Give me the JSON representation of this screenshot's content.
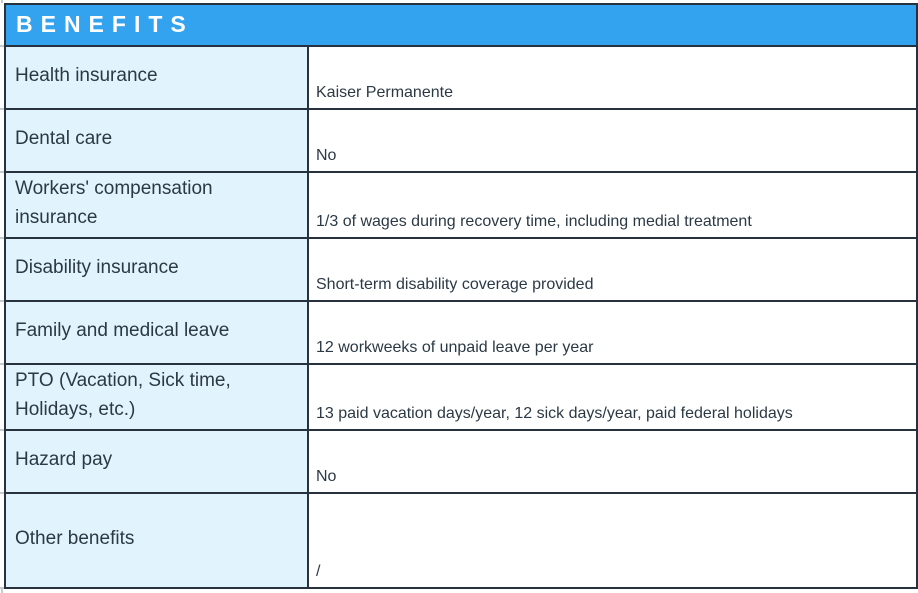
{
  "header": {
    "title": "BENEFITS"
  },
  "table": {
    "rows": [
      {
        "label": "Health insurance",
        "value": "Kaiser Permanente"
      },
      {
        "label": "Dental care",
        "value": "No"
      },
      {
        "label": "Workers' compensation insurance",
        "value": "1/3 of wages during recovery time, including medial treatment"
      },
      {
        "label": "Disability insurance",
        "value": "Short-term disability coverage provided"
      },
      {
        "label": "Family and medical leave",
        "value": "12 workweeks of unpaid leave per year"
      },
      {
        "label": "PTO (Vacation, Sick time, Holidays, etc.)",
        "value": "13 paid vacation days/year, 12 sick days/year, paid federal holidays"
      },
      {
        "label": "Hazard pay",
        "value": "No"
      },
      {
        "label": "Other benefits",
        "value": "/"
      }
    ]
  },
  "colors": {
    "header_bg": "#33a3ef",
    "header_text": "#ffffff",
    "label_bg": "#e1f3fc",
    "value_bg": "#ffffff",
    "border": "#27323e",
    "text": "#2b3945",
    "gridline_tick": "#c6cbcf"
  }
}
